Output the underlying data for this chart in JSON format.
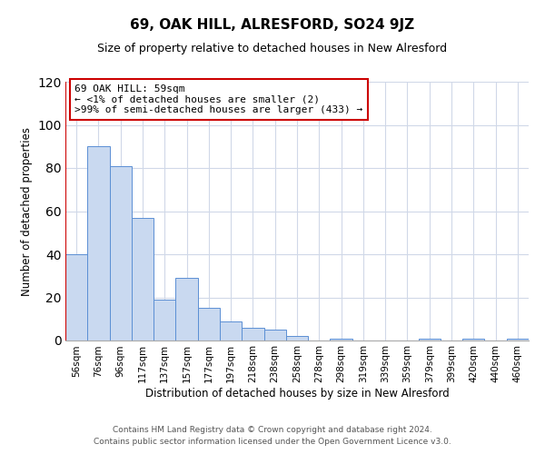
{
  "title": "69, OAK HILL, ALRESFORD, SO24 9JZ",
  "subtitle": "Size of property relative to detached houses in New Alresford",
  "xlabel": "Distribution of detached houses by size in New Alresford",
  "ylabel": "Number of detached properties",
  "categories": [
    "56sqm",
    "76sqm",
    "96sqm",
    "117sqm",
    "137sqm",
    "157sqm",
    "177sqm",
    "197sqm",
    "218sqm",
    "238sqm",
    "258sqm",
    "278sqm",
    "298sqm",
    "319sqm",
    "339sqm",
    "359sqm",
    "379sqm",
    "399sqm",
    "420sqm",
    "440sqm",
    "460sqm"
  ],
  "values": [
    40,
    90,
    81,
    57,
    19,
    29,
    15,
    9,
    6,
    5,
    2,
    0,
    1,
    0,
    0,
    0,
    1,
    0,
    1,
    0,
    1
  ],
  "bar_color": "#c9d9f0",
  "bar_edge_color": "#5b8fd4",
  "annotation_box_text": "69 OAK HILL: 59sqm\n← <1% of detached houses are smaller (2)\n>99% of semi-detached houses are larger (433) →",
  "annotation_box_color": "#ffffff",
  "annotation_box_edge_color": "#cc0000",
  "ylim": [
    0,
    120
  ],
  "yticks": [
    0,
    20,
    40,
    60,
    80,
    100,
    120
  ],
  "footer1": "Contains HM Land Registry data © Crown copyright and database right 2024.",
  "footer2": "Contains public sector information licensed under the Open Government Licence v3.0.",
  "bg_color": "#ffffff",
  "grid_color": "#d0d8e8",
  "title_fontsize": 11,
  "subtitle_fontsize": 9,
  "axis_label_fontsize": 8.5,
  "tick_fontsize": 7.5,
  "footer_fontsize": 6.5,
  "annotation_fontsize": 8
}
